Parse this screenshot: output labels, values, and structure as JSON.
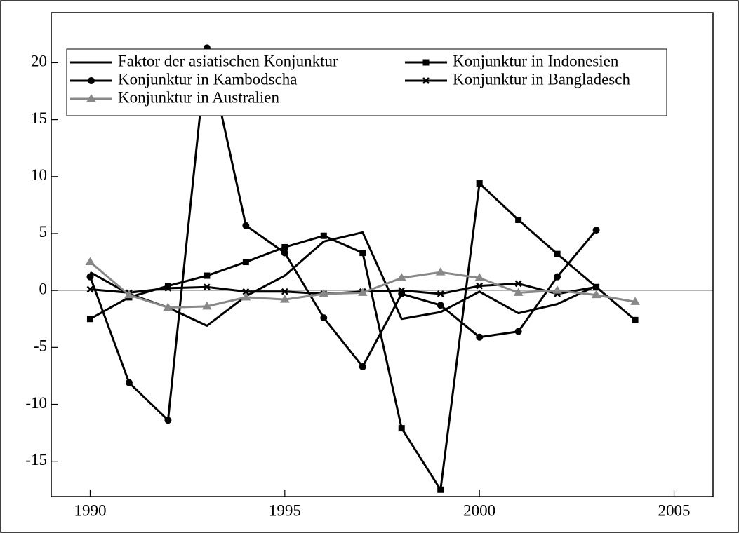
{
  "chart_data": {
    "type": "line",
    "x": [
      1990,
      1991,
      1992,
      1993,
      1994,
      1995,
      1996,
      1997,
      1998,
      1999,
      2000,
      2001,
      2002,
      2003,
      2004
    ],
    "xlim": [
      1989,
      2006
    ],
    "xticks": [
      1990,
      1995,
      2000,
      2005
    ],
    "ylim": [
      -18.1,
      24.4
    ],
    "yticks": [
      -15,
      -10,
      -5,
      0,
      5,
      10,
      15,
      20
    ],
    "legend": "top-left",
    "series": [
      {
        "name": "Faktor der asiatischen Konjunktur",
        "color": "#000000",
        "marker": "none",
        "values": [
          1.6,
          -0.3,
          -1.5,
          -3.1,
          -0.5,
          1.3,
          4.3,
          5.1,
          -2.5,
          -1.9,
          -0.1,
          -2.0,
          -1.2,
          0.4,
          null
        ]
      },
      {
        "name": "Konjunktur in Indonesien",
        "color": "#000000",
        "marker": "square",
        "values": [
          -2.5,
          -0.6,
          0.4,
          1.3,
          2.5,
          3.8,
          4.8,
          3.3,
          -12.1,
          -17.5,
          9.4,
          6.2,
          3.2,
          0.3,
          -2.6
        ]
      },
      {
        "name": "Konjunktur in Kambodscha",
        "color": "#000000",
        "marker": "circle",
        "values": [
          1.2,
          -8.1,
          -11.4,
          21.3,
          5.7,
          3.3,
          -2.4,
          -6.7,
          -0.3,
          -1.3,
          -4.1,
          -3.6,
          1.2,
          5.3,
          null
        ]
      },
      {
        "name": "Konjunktur in Bangladesch",
        "color": "#000000",
        "marker": "cross",
        "values": [
          0.1,
          -0.2,
          0.2,
          0.3,
          -0.1,
          -0.1,
          -0.3,
          -0.1,
          0.0,
          -0.3,
          0.4,
          0.6,
          -0.3,
          0.3,
          null
        ]
      },
      {
        "name": "Konjunktur in Australien",
        "color": "#888888",
        "marker": "triangle",
        "values": [
          2.5,
          -0.4,
          -1.5,
          -1.4,
          -0.6,
          -0.8,
          -0.3,
          -0.2,
          1.1,
          1.6,
          1.1,
          -0.2,
          0.0,
          -0.4,
          -1.0
        ]
      }
    ]
  }
}
